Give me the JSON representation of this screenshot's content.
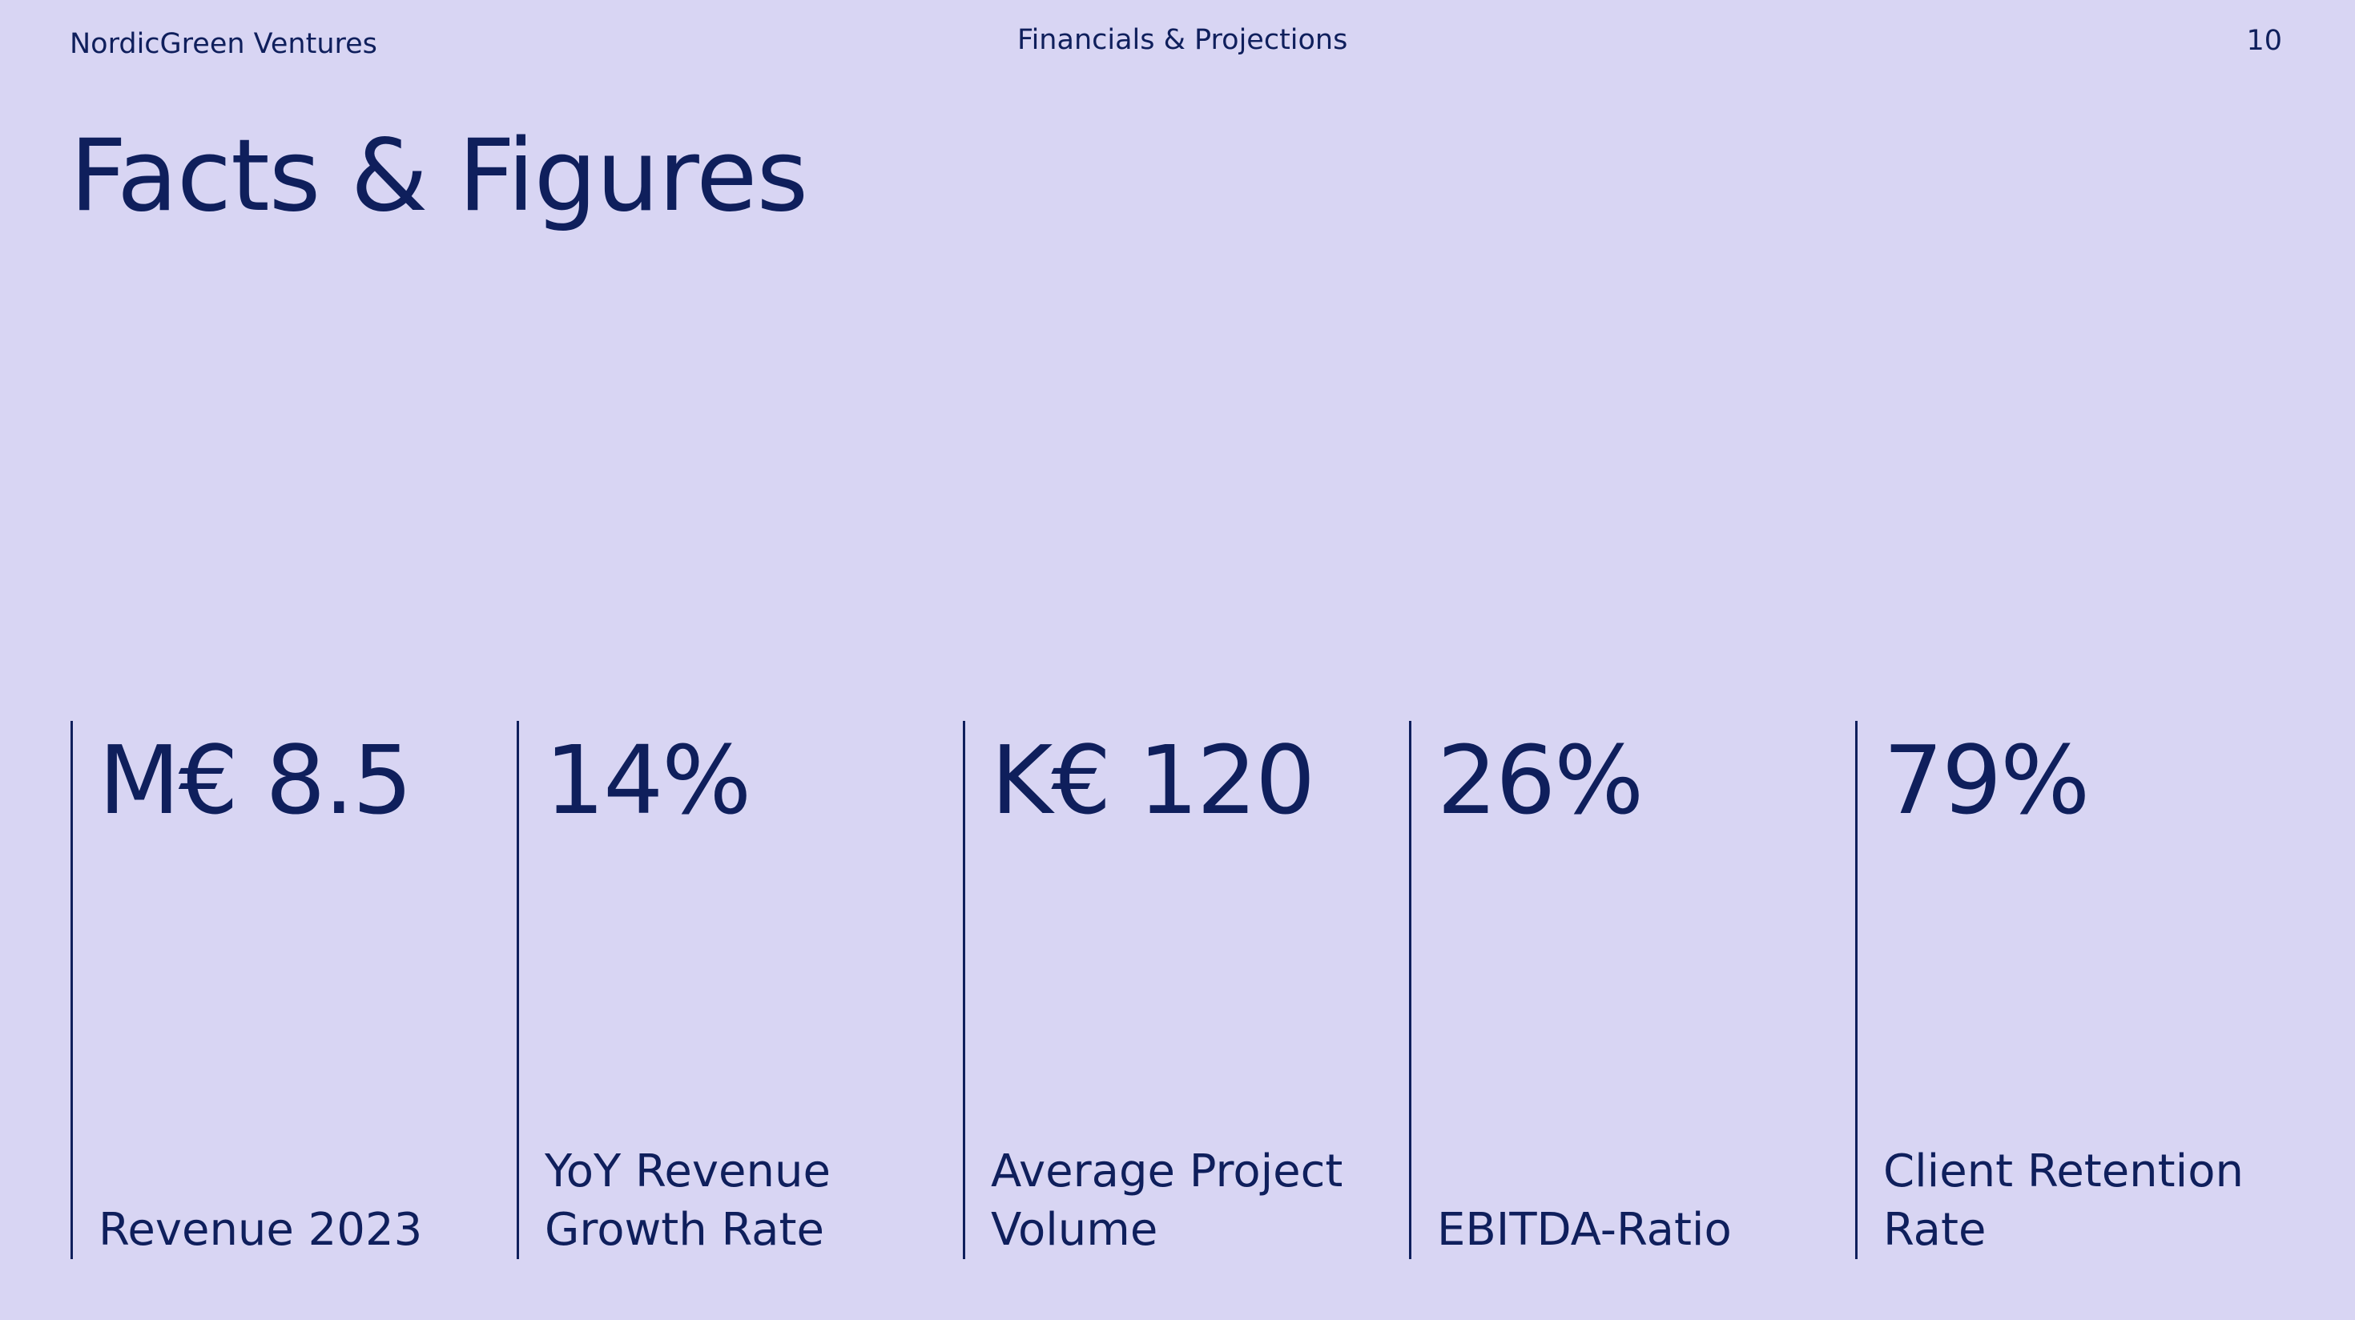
{
  "header": {
    "company": "NordicGreen Ventures",
    "section": "Financials & Projections",
    "page_number": "10"
  },
  "title": "Facts & Figures",
  "kpis": [
    {
      "value": "M€ 8.5",
      "label": "Revenue 2023"
    },
    {
      "value": "14%",
      "label": "YoY Revenue Growth Rate"
    },
    {
      "value": "K€ 120",
      "label": "Average Project Volume"
    },
    {
      "value": "26%",
      "label": "EBITDA-Ratio"
    },
    {
      "value": "79%",
      "label": "Client Retention Rate"
    }
  ]
}
